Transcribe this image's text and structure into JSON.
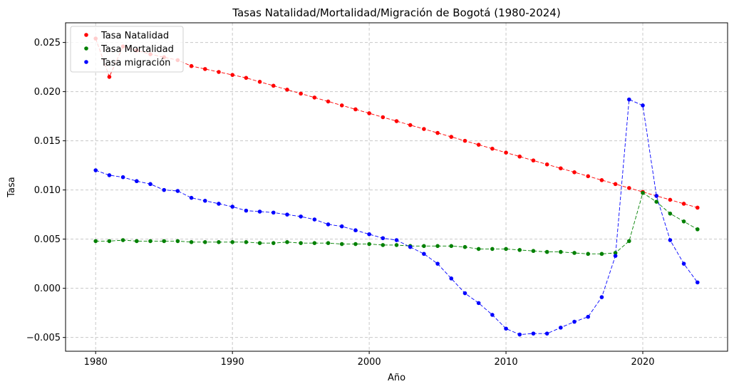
{
  "chart_data": {
    "type": "line",
    "title": "Tasas Natalidad/Mortalidad/Migración de Bogotá (1980-2024)",
    "xlabel": "Año",
    "ylabel": "Tasa",
    "xlim": [
      1977.8,
      2026.2
    ],
    "ylim": [
      -0.0064,
      0.027
    ],
    "xticks": [
      1980,
      1990,
      2000,
      2010,
      2020
    ],
    "xtick_labels": [
      "1980",
      "1990",
      "2000",
      "2010",
      "2020"
    ],
    "yticks": [
      -0.005,
      0.0,
      0.005,
      0.01,
      0.015,
      0.02,
      0.025
    ],
    "ytick_labels": [
      "−0.005",
      "0.000",
      "0.005",
      "0.010",
      "0.015",
      "0.020",
      "0.025"
    ],
    "grid": true,
    "legend_position": "top-left",
    "x": [
      1980,
      1981,
      1982,
      1983,
      1984,
      1985,
      1986,
      1987,
      1988,
      1989,
      1990,
      1991,
      1992,
      1993,
      1994,
      1995,
      1996,
      1997,
      1998,
      1999,
      2000,
      2001,
      2002,
      2003,
      2004,
      2005,
      2006,
      2007,
      2008,
      2009,
      2010,
      2011,
      2012,
      2013,
      2014,
      2015,
      2016,
      2017,
      2018,
      2019,
      2020,
      2021,
      2022,
      2023,
      2024
    ],
    "series": [
      {
        "name": "Tasa Natalidad",
        "color": "#ff0000",
        "values": [
          0.0254,
          0.0215,
          0.0246,
          0.0242,
          0.0238,
          0.0235,
          0.0232,
          0.0226,
          0.0223,
          0.022,
          0.0217,
          0.0214,
          0.021,
          0.0206,
          0.0202,
          0.0198,
          0.0194,
          0.019,
          0.0186,
          0.0182,
          0.0178,
          0.0174,
          0.017,
          0.0166,
          0.0162,
          0.0158,
          0.0154,
          0.015,
          0.0146,
          0.0142,
          0.0138,
          0.0134,
          0.013,
          0.0126,
          0.0122,
          0.0118,
          0.0114,
          0.011,
          0.0106,
          0.0102,
          0.0098,
          0.0094,
          0.009,
          0.0086,
          0.0082
        ]
      },
      {
        "name": "Tasa Mortalidad",
        "color": "#008000",
        "values": [
          0.0048,
          0.0048,
          0.0049,
          0.0048,
          0.0048,
          0.0048,
          0.0048,
          0.0047,
          0.0047,
          0.0047,
          0.0047,
          0.0047,
          0.0046,
          0.0046,
          0.0047,
          0.0046,
          0.0046,
          0.0046,
          0.0045,
          0.0045,
          0.0045,
          0.0044,
          0.0044,
          0.0043,
          0.0043,
          0.0043,
          0.0043,
          0.0042,
          0.004,
          0.004,
          0.004,
          0.0039,
          0.0038,
          0.0037,
          0.0037,
          0.0036,
          0.0035,
          0.0035,
          0.0036,
          0.0048,
          0.0097,
          0.0088,
          0.0076,
          0.0068,
          0.006
        ]
      },
      {
        "name": "Tasa migración",
        "color": "#0000ff",
        "values": [
          0.012,
          0.0115,
          0.0113,
          0.0109,
          0.0106,
          0.01,
          0.0099,
          0.0092,
          0.0089,
          0.0086,
          0.0083,
          0.0079,
          0.0078,
          0.0077,
          0.0075,
          0.0073,
          0.007,
          0.0065,
          0.0063,
          0.0059,
          0.0055,
          0.0051,
          0.0049,
          0.0042,
          0.0035,
          0.0025,
          0.001,
          -0.0005,
          -0.0015,
          -0.0027,
          -0.0041,
          -0.0047,
          -0.0046,
          -0.0046,
          -0.004,
          -0.0034,
          -0.0029,
          -0.0009,
          0.0033,
          0.0192,
          0.0186,
          0.0094,
          0.0049,
          0.0025,
          0.0006
        ]
      }
    ]
  }
}
